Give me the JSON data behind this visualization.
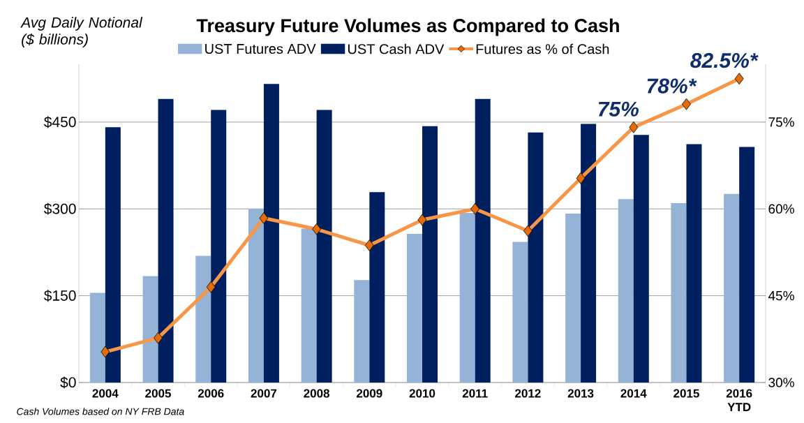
{
  "chart_data": {
    "type": "bar",
    "title": "Treasury Future Volumes as Compared to Cash",
    "ylabel": "Avg Daily Notional ($ billions)",
    "categories": [
      "2004",
      "2005",
      "2006",
      "2007",
      "2008",
      "2009",
      "2010",
      "2011",
      "2012",
      "2013",
      "2014",
      "2015",
      "2016 YTD"
    ],
    "series": [
      {
        "name": "UST Futures ADV",
        "color": "#95b3d7",
        "values": [
          155,
          184,
          219,
          300,
          266,
          177,
          257,
          293,
          243,
          292,
          317,
          310,
          326
        ]
      },
      {
        "name": "UST Cash ADV",
        "color": "#001f5f",
        "values": [
          441,
          490,
          471,
          516,
          471,
          329,
          443,
          490,
          432,
          447,
          428,
          412,
          407
        ]
      },
      {
        "name": "Futures as % of Cash",
        "type": "line",
        "axis": "y2",
        "color": "#f79646",
        "marker": "diamond",
        "values": [
          35.3,
          37.7,
          46.5,
          58.4,
          56.5,
          53.7,
          58.1,
          60.0,
          56.2,
          65.3,
          74.1,
          78.1,
          82.5
        ]
      }
    ],
    "ylim": [
      0,
      550
    ],
    "yticks": [
      {
        "value": 0,
        "label": "$0"
      },
      {
        "value": 150,
        "label": "$150"
      },
      {
        "value": 300,
        "label": "$300"
      },
      {
        "value": 450,
        "label": "$450"
      }
    ],
    "y2lim": [
      30,
      85
    ],
    "y2ticks": [
      {
        "value": 30,
        "label": "30%"
      },
      {
        "value": 45,
        "label": "45%"
      },
      {
        "value": 60,
        "label": "60%"
      },
      {
        "value": 75,
        "label": "75%"
      }
    ],
    "grid": "y",
    "legend": "top",
    "annotations": [
      "75%",
      "78%*",
      "82.5%*",
      "Cash Volumes based on NY FRB Data"
    ]
  }
}
